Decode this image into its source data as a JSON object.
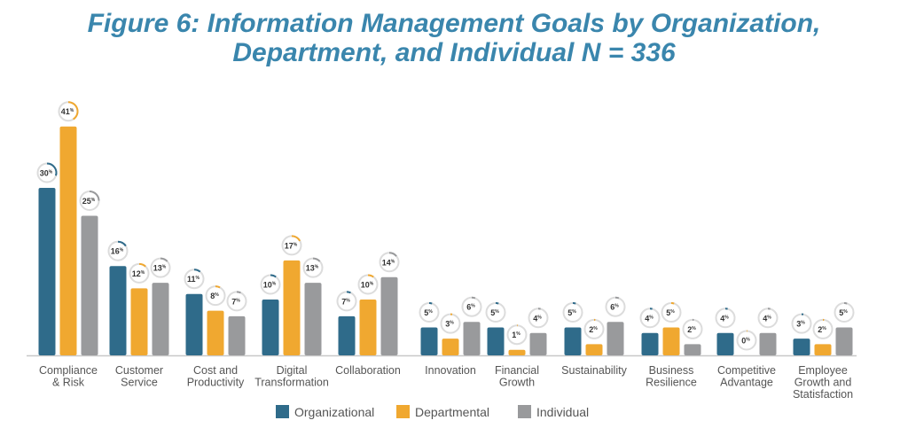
{
  "chart_data": {
    "type": "bar",
    "title_lines": [
      "Figure 6: Information Management Goals by Organization,",
      "Department, and Individual N = 336"
    ],
    "categories": [
      [
        "Compliance",
        "& Risk"
      ],
      [
        "Customer",
        "Service"
      ],
      [
        "Cost and",
        "Productivity"
      ],
      [
        "Digital",
        "Transformation"
      ],
      [
        "Collaboration"
      ],
      [
        "Innovation"
      ],
      [
        "Financial",
        "Growth"
      ],
      [
        "Sustainability"
      ],
      [
        "Business",
        "Resilience"
      ],
      [
        "Competitive",
        "Advantage"
      ],
      [
        "Employee",
        "Growth and",
        "Statisfaction"
      ]
    ],
    "series": [
      {
        "name": "Organizational",
        "color": "#2f6b8a",
        "values": [
          30,
          16,
          11,
          10,
          7,
          5,
          5,
          5,
          4,
          4,
          3
        ]
      },
      {
        "name": "Departmental",
        "color": "#f0a830",
        "values": [
          41,
          12,
          8,
          17,
          10,
          3,
          1,
          2,
          5,
          0,
          2
        ]
      },
      {
        "name": "Individual",
        "color": "#999a9c",
        "values": [
          25,
          13,
          7,
          13,
          14,
          6,
          4,
          6,
          2,
          4,
          5
        ]
      }
    ],
    "unit": "%",
    "ylim": [
      0,
      45
    ],
    "grid": false,
    "legend": "bottom"
  }
}
